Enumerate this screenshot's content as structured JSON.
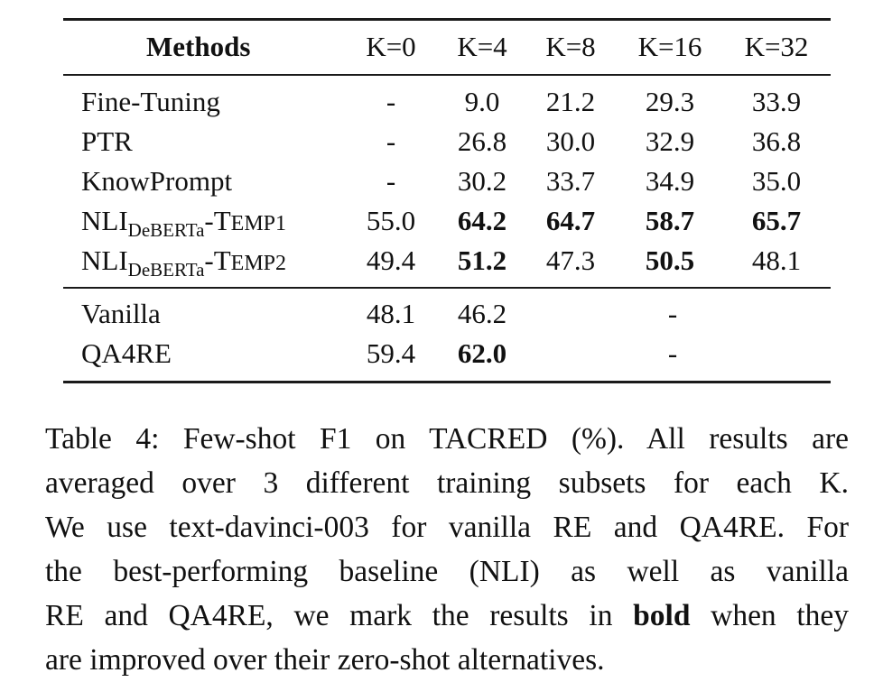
{
  "table": {
    "headers": [
      "Methods",
      "K=0",
      "K=4",
      "K=8",
      "K=16",
      "K=32"
    ],
    "group1": [
      {
        "method": "Fine-Tuning",
        "values": [
          "-",
          "9.0",
          "21.2",
          "29.3",
          "33.9"
        ],
        "bold": [
          false,
          false,
          false,
          false,
          false
        ]
      },
      {
        "method": "PTR",
        "values": [
          "-",
          "26.8",
          "30.0",
          "32.9",
          "36.8"
        ],
        "bold": [
          false,
          false,
          false,
          false,
          false
        ]
      },
      {
        "method": "KnowPrompt",
        "values": [
          "-",
          "30.2",
          "33.7",
          "34.9",
          "35.0"
        ],
        "bold": [
          false,
          false,
          false,
          false,
          false
        ]
      },
      {
        "method_base": "NLI",
        "method_sub": "DeBERTa",
        "method_suffix_first": "-T",
        "method_suffix_rest": "EMP1",
        "values": [
          "55.0",
          "64.2",
          "64.7",
          "58.7",
          "65.7"
        ],
        "bold": [
          false,
          true,
          true,
          true,
          true
        ]
      },
      {
        "method_base": "NLI",
        "method_sub": "DeBERTa",
        "method_suffix_first": "-T",
        "method_suffix_rest": "EMP2",
        "values": [
          "49.4",
          "51.2",
          "47.3",
          "50.5",
          "48.1"
        ],
        "bold": [
          false,
          true,
          false,
          true,
          false
        ]
      }
    ],
    "group2": [
      {
        "method": "Vanilla",
        "values": [
          "48.1",
          "46.2"
        ],
        "rest": "-",
        "bold": [
          false,
          false
        ]
      },
      {
        "method": "QA4RE",
        "values": [
          "59.4",
          "62.0"
        ],
        "rest": "-",
        "bold": [
          false,
          true
        ]
      }
    ]
  },
  "caption": {
    "line1": "Table 4: Few-shot F1 on TACRED (%). All results are",
    "line2": "averaged over 3 different training subsets for each K.",
    "line3": "We use text-davinci-003 for vanilla RE and QA4RE. For",
    "line4": "the best-performing baseline (NLI) as well as vanilla",
    "line5_pre": "RE and QA4RE, we mark the results in",
    "line5_bold": "bold",
    "line5_post": "when they",
    "line6": "are improved over their zero-shot alternatives."
  }
}
